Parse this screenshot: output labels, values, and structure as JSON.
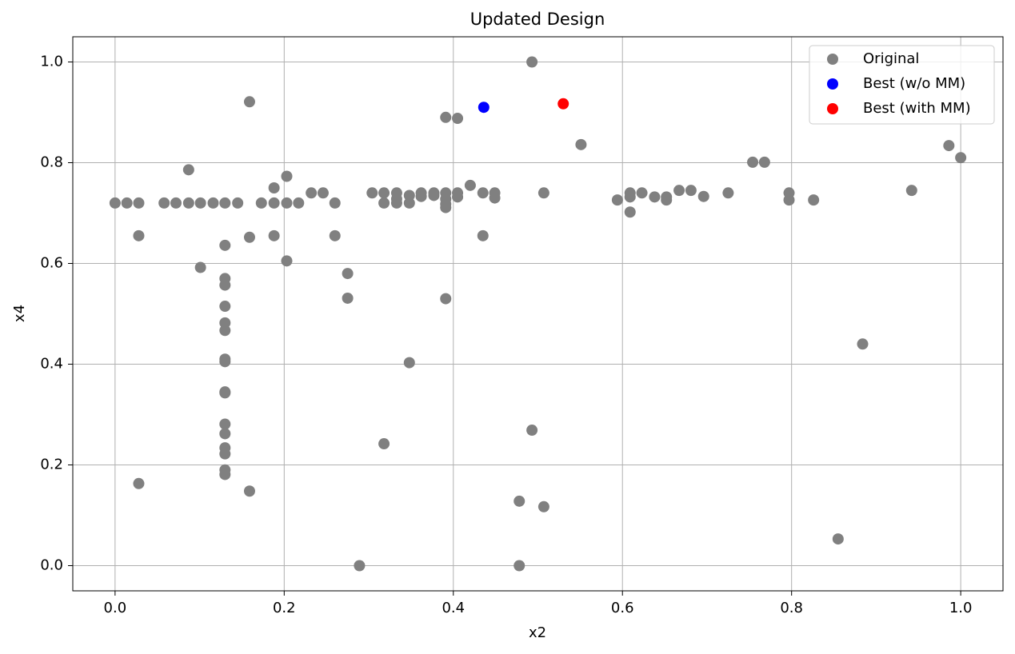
{
  "chart_data": {
    "type": "scatter",
    "title": "Updated Design",
    "x_label": "x2",
    "y_label": "x4",
    "xlim": [
      -0.05,
      1.05
    ],
    "ylim": [
      -0.05,
      1.05
    ],
    "xticks": [
      {
        "value": 0,
        "label": "0.0"
      },
      0.2,
      0.4,
      0.6,
      0.8,
      {
        "value": 1,
        "label": "1.0"
      }
    ],
    "yticks": [
      {
        "value": 0,
        "label": "0.0"
      },
      0.2,
      0.4,
      0.6,
      0.8,
      {
        "value": 1,
        "label": "1.0"
      }
    ],
    "grid": true,
    "legend": "upper right",
    "series": [
      {
        "name": "Original",
        "color": "#808080",
        "x": [
          0,
          0.014,
          0.028,
          0.028,
          0.028,
          0.058,
          0.072,
          0.087,
          0.087,
          0.101,
          0.101,
          0.116,
          0.13,
          0.13,
          0.13,
          0.13,
          0.13,
          0.13,
          0.13,
          0.13,
          0.13,
          0.13,
          0.13,
          0.13,
          0.13,
          0.13,
          0.13,
          0.13,
          0.13,
          0.145,
          0.159,
          0.159,
          0.159,
          0.173,
          0.188,
          0.188,
          0.188,
          0.203,
          0.203,
          0.203,
          0.217,
          0.232,
          0.246,
          0.26,
          0.26,
          0.275,
          0.275,
          0.289,
          0.304,
          0.318,
          0.318,
          0.318,
          0.333,
          0.333,
          0.333,
          0.348,
          0.348,
          0.348,
          0.362,
          0.362,
          0.377,
          0.377,
          0.391,
          0.391,
          0.391,
          0.391,
          0.391,
          0.391,
          0.405,
          0.405,
          0.405,
          0.42,
          0.435,
          0.435,
          0.449,
          0.449,
          0.478,
          0.478,
          0.493,
          0.493,
          0.507,
          0.507,
          0.551,
          0.594,
          0.609,
          0.609,
          0.609,
          0.623,
          0.638,
          0.652,
          0.652,
          0.667,
          0.681,
          0.696,
          0.725,
          0.754,
          0.768,
          0.797,
          0.797,
          0.826,
          0.855,
          0.884,
          0.942,
          0.986,
          1.0
        ],
        "values": [
          0.72,
          0.72,
          0.72,
          0.655,
          0.163,
          0.72,
          0.72,
          0.72,
          0.786,
          0.72,
          0.592,
          0.72,
          0.72,
          0.636,
          0.57,
          0.557,
          0.515,
          0.482,
          0.467,
          0.41,
          0.405,
          0.345,
          0.343,
          0.281,
          0.262,
          0.234,
          0.222,
          0.19,
          0.181,
          0.72,
          0.921,
          0.652,
          0.148,
          0.72,
          0.75,
          0.72,
          0.655,
          0.773,
          0.72,
          0.605,
          0.72,
          0.74,
          0.74,
          0.72,
          0.655,
          0.58,
          0.531,
          0,
          0.74,
          0.74,
          0.72,
          0.242,
          0.74,
          0.728,
          0.72,
          0.735,
          0.72,
          0.403,
          0.74,
          0.733,
          0.74,
          0.735,
          0.89,
          0.74,
          0.728,
          0.718,
          0.711,
          0.53,
          0.888,
          0.74,
          0.732,
          0.755,
          0.74,
          0.655,
          0.74,
          0.73,
          0.128,
          0,
          1.0,
          0.269,
          0.74,
          0.117,
          0.836,
          0.726,
          0.74,
          0.732,
          0.702,
          0.74,
          0.732,
          0.732,
          0.726,
          0.745,
          0.745,
          0.733,
          0.74,
          0.801,
          0.801,
          0.74,
          0.726,
          0.726,
          0.053,
          0.44,
          0.745,
          0.834,
          0.81
        ]
      },
      {
        "name": "Best (w/o MM)",
        "color": "#0000ff",
        "x": [
          0.436
        ],
        "values": [
          0.91
        ]
      },
      {
        "name": "Best (with MM)",
        "color": "#ff0000",
        "x": [
          0.53
        ],
        "values": [
          0.917
        ]
      }
    ]
  }
}
